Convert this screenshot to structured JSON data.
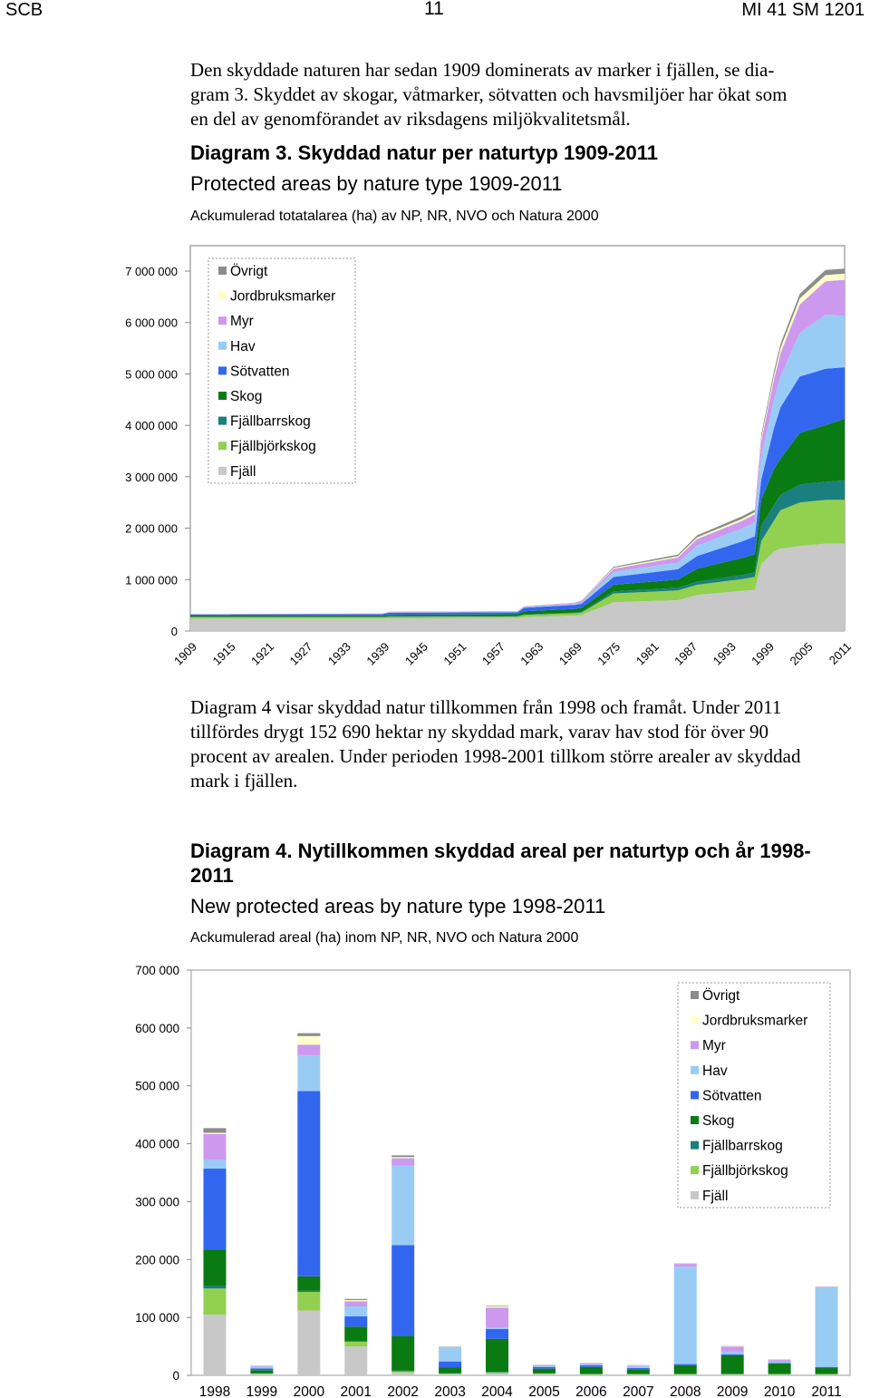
{
  "header": {
    "left": "SCB",
    "center": "11",
    "right": "MI 41 SM 1201"
  },
  "intro_text": [
    "Den skyddade naturen har sedan 1909 dominerats av marker i fjällen, se dia-",
    "gram 3. Skyddet av skogar, våtmarker, sötvatten och havsmiljöer har ökat som",
    "en del av genomförandet av riksdagens miljökvalitetsmål."
  ],
  "middle_text": [
    "Diagram 4 visar skyddad natur tillkommen från 1998 och framåt. Under 2011",
    "tillfördes drygt 152 690 hektar ny skyddad mark, varav hav stod för över 90",
    "procent av arealen. Under perioden 1998-2001 tillkom större arealer av skyddad",
    "mark i fjällen."
  ],
  "diagram3": {
    "title": "Diagram 3. Skyddad natur per naturtyp 1909-2011",
    "subtitle": "Protected areas by nature type 1909-2011",
    "note": "Ackumulerad totatalarea (ha) av NP, NR, NVO och Natura 2000"
  },
  "diagram4": {
    "title_line1": "Diagram 4. Nytillkommen skyddad areal per naturtyp och år 1998-",
    "title_line2": "2011",
    "subtitle": "New protected areas by nature type 1998-2011",
    "note": "Ackumulerad areal (ha) inom NP, NR, NVO och Natura 2000"
  },
  "colors": {
    "Fjäll": "#c8c8c8",
    "Fjällbjörkskog": "#92d050",
    "Fjällbarrskog": "#1a7f7f",
    "Skog": "#0a7a12",
    "Sötvatten": "#3366ee",
    "Hav": "#99ccf5",
    "Myr": "#cc99ee",
    "Jordbruksmarker": "#ffffcc",
    "Övrigt": "#8c8c8c"
  },
  "chart_data": [
    {
      "type": "area",
      "stacked": true,
      "series_order": [
        "Fjäll",
        "Fjällbjörkskog",
        "Fjällbarrskog",
        "Skog",
        "Sötvatten",
        "Hav",
        "Myr",
        "Jordbruksmarker",
        "Övrigt"
      ],
      "legend_order": [
        "Övrigt",
        "Jordbruksmarker",
        "Myr",
        "Hav",
        "Sötvatten",
        "Skog",
        "Fjällbarrskog",
        "Fjällbjörkskog",
        "Fjäll"
      ],
      "legend_position": "top-left",
      "ylim": [
        0,
        7000000
      ],
      "yticks": [
        "0",
        "1 000 000",
        "2 000 000",
        "3 000 000",
        "4 000 000",
        "5 000 000",
        "6 000 000",
        "7 000 000"
      ],
      "xticks": [
        "1909",
        "1915",
        "1921",
        "1927",
        "1933",
        "1939",
        "1945",
        "1951",
        "1957",
        "1963",
        "1969",
        "1975",
        "1981",
        "1987",
        "1993",
        "1999",
        "2005",
        "2011"
      ],
      "points": [
        {
          "year": 1909,
          "values": [
            240000,
            30000,
            10000,
            20000,
            20000,
            0,
            5000,
            0,
            5000
          ]
        },
        {
          "year": 1939,
          "values": [
            240000,
            30000,
            10000,
            25000,
            25000,
            0,
            5000,
            0,
            5000
          ]
        },
        {
          "year": 1940,
          "values": [
            245000,
            30000,
            10000,
            30000,
            40000,
            5000,
            8000,
            0,
            5000
          ]
        },
        {
          "year": 1960,
          "values": [
            250000,
            32000,
            10000,
            35000,
            40000,
            5000,
            8000,
            0,
            5000
          ]
        },
        {
          "year": 1961,
          "values": [
            270000,
            40000,
            12000,
            60000,
            70000,
            10000,
            15000,
            2000,
            5000
          ]
        },
        {
          "year": 1969,
          "values": [
            300000,
            45000,
            15000,
            70000,
            80000,
            15000,
            20000,
            3000,
            5000
          ]
        },
        {
          "year": 1970,
          "values": [
            310000,
            50000,
            15000,
            75000,
            80000,
            20000,
            25000,
            5000,
            10000
          ]
        },
        {
          "year": 1975,
          "values": [
            560000,
            170000,
            40000,
            130000,
            150000,
            100000,
            60000,
            20000,
            20000
          ]
        },
        {
          "year": 1985,
          "values": [
            600000,
            190000,
            50000,
            160000,
            200000,
            130000,
            100000,
            25000,
            30000
          ]
        },
        {
          "year": 1988,
          "values": [
            700000,
            200000,
            60000,
            250000,
            250000,
            200000,
            130000,
            30000,
            40000
          ]
        },
        {
          "year": 1995,
          "values": [
            780000,
            230000,
            80000,
            330000,
            320000,
            250000,
            150000,
            40000,
            50000
          ]
        },
        {
          "year": 1997,
          "values": [
            800000,
            250000,
            90000,
            350000,
            350000,
            270000,
            160000,
            40000,
            50000
          ]
        },
        {
          "year": 1998,
          "values": [
            1300000,
            450000,
            300000,
            500000,
            400000,
            450000,
            300000,
            50000,
            60000
          ]
        },
        {
          "year": 2000,
          "values": [
            1550000,
            600000,
            300000,
            700000,
            800000,
            550000,
            400000,
            80000,
            80000
          ]
        },
        {
          "year": 2001,
          "values": [
            1600000,
            750000,
            300000,
            700000,
            1000000,
            600000,
            450000,
            100000,
            80000
          ]
        },
        {
          "year": 2004,
          "values": [
            1650000,
            850000,
            350000,
            1000000,
            1100000,
            850000,
            550000,
            120000,
            90000
          ]
        },
        {
          "year": 2008,
          "values": [
            1700000,
            850000,
            350000,
            1100000,
            1100000,
            1050000,
            650000,
            120000,
            100000
          ]
        },
        {
          "year": 2011,
          "values": [
            1700000,
            850000,
            380000,
            1200000,
            1000000,
            1000000,
            700000,
            120000,
            100000
          ]
        }
      ]
    },
    {
      "type": "bar",
      "stacked": true,
      "categories": [
        "1998",
        "1999",
        "2000",
        "2001",
        "2002",
        "2003",
        "2004",
        "2005",
        "2006",
        "2007",
        "2008",
        "2009",
        "2010",
        "2011"
      ],
      "ylim": [
        0,
        700000
      ],
      "yticks": [
        "0",
        "100 000",
        "200 000",
        "300 000",
        "400 000",
        "500 000",
        "600 000",
        "700 000"
      ],
      "legend_position": "top-right",
      "legend_order": [
        "Övrigt",
        "Jordbruksmarker",
        "Myr",
        "Hav",
        "Sötvatten",
        "Skog",
        "Fjällbarrskog",
        "Fjällbjörkskog",
        "Fjäll"
      ],
      "series": [
        {
          "name": "Fjäll",
          "values": [
            105000,
            2000,
            112000,
            50000,
            5000,
            2000,
            3000,
            2000,
            1000,
            1000,
            1000,
            1000,
            1000,
            1000
          ]
        },
        {
          "name": "Fjällbjörkskog",
          "values": [
            45000,
            1000,
            32000,
            8000,
            2000,
            1000,
            2000,
            1000,
            1000,
            1000,
            1000,
            1000,
            1000,
            1000
          ]
        },
        {
          "name": "Fjällbarrskog",
          "values": [
            5000,
            1000,
            2000,
            1000,
            1000,
            1000,
            1000,
            500,
            500,
            500,
            500,
            500,
            500,
            500
          ]
        },
        {
          "name": "Skog",
          "values": [
            62000,
            5000,
            25000,
            25000,
            60000,
            10000,
            57000,
            8000,
            12000,
            8000,
            15000,
            32000,
            18000,
            10000
          ]
        },
        {
          "name": "Sötvatten",
          "values": [
            140000,
            3000,
            320000,
            18000,
            157000,
            10000,
            17000,
            3000,
            3000,
            2000,
            2000,
            2000,
            1000,
            2000
          ]
        },
        {
          "name": "Hav",
          "values": [
            15000,
            3000,
            62000,
            17000,
            137000,
            24000,
            2000,
            2000,
            2000,
            3000,
            168000,
            5000,
            2000,
            137000
          ]
        },
        {
          "name": "Myr",
          "values": [
            45000,
            1000,
            18000,
            9000,
            13000,
            1000,
            35000,
            1000,
            1000,
            1000,
            5000,
            8000,
            3000,
            1000
          ]
        },
        {
          "name": "Jordbruksmarker",
          "values": [
            2000,
            500,
            15000,
            2000,
            2000,
            500,
            2000,
            500,
            500,
            500,
            500,
            500,
            500,
            500
          ]
        },
        {
          "name": "Övrigt",
          "values": [
            8000,
            500,
            5000,
            2000,
            3000,
            500,
            1000,
            500,
            500,
            500,
            500,
            500,
            500,
            500
          ]
        }
      ]
    }
  ]
}
